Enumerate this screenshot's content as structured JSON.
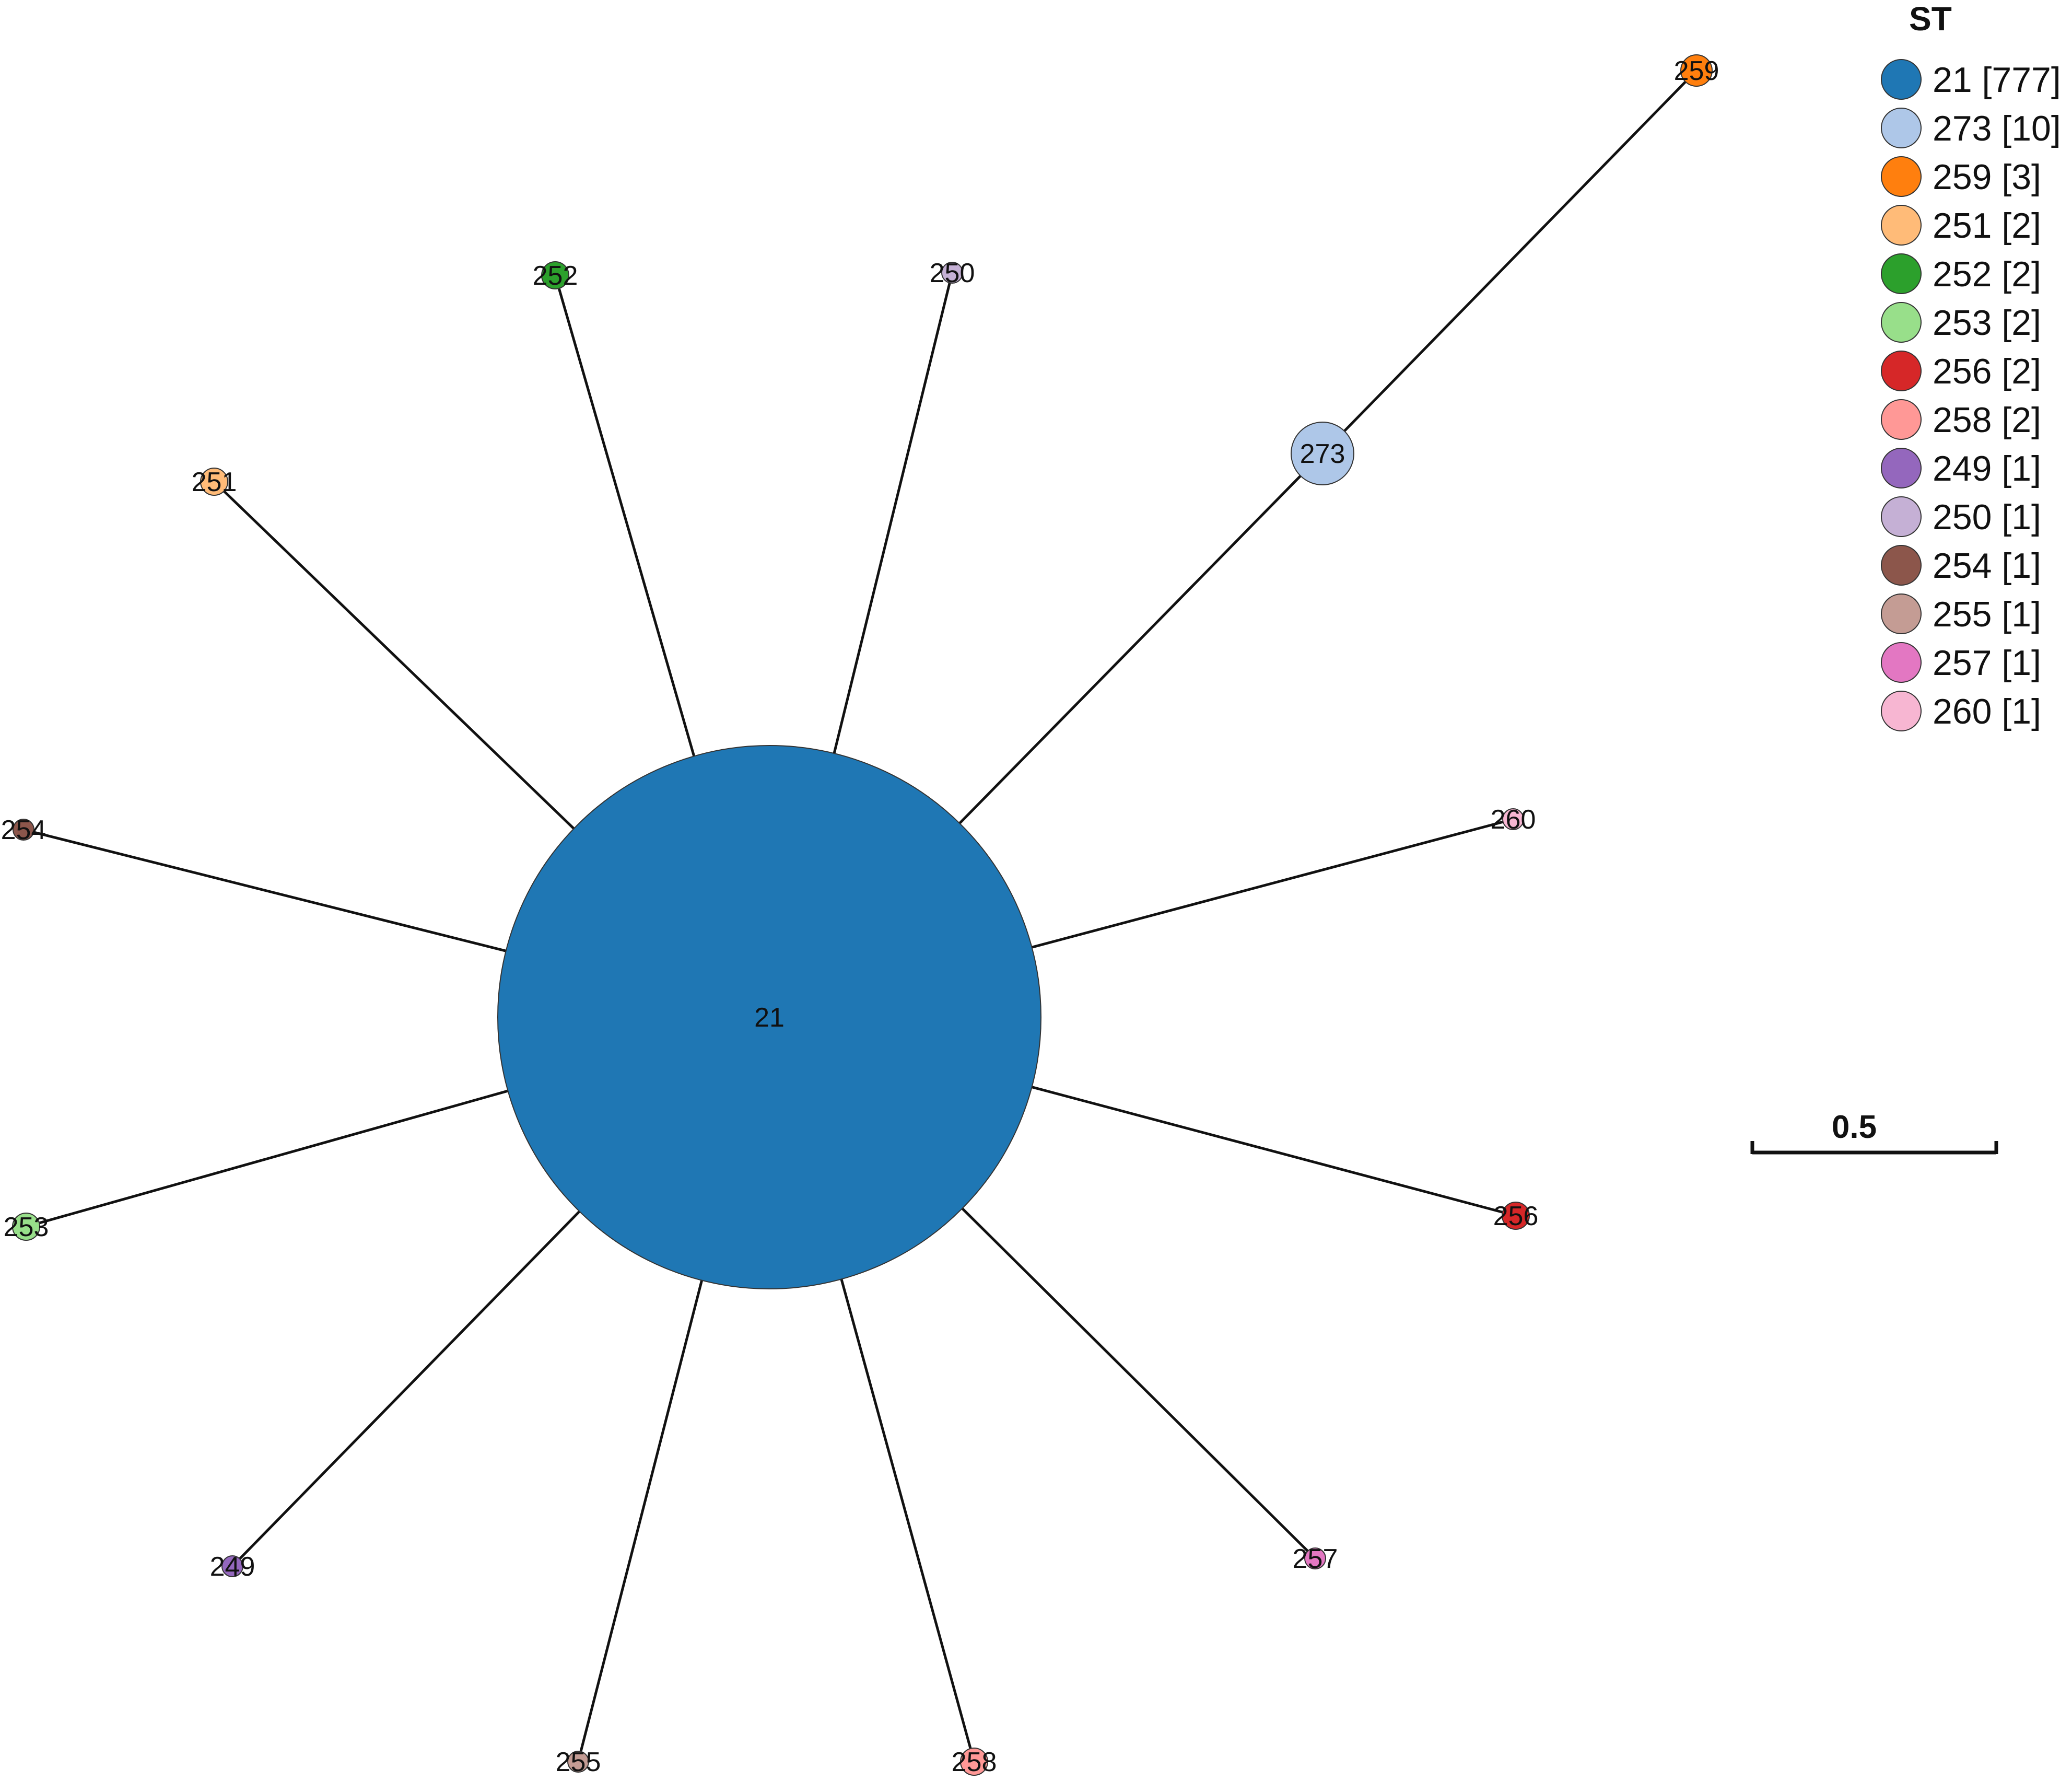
{
  "network": {
    "center": {
      "label": "21",
      "color": "#1f77b4"
    },
    "nodes": [
      {
        "id": "273",
        "label": "273",
        "color": "#aec7e8"
      },
      {
        "id": "259",
        "label": "259",
        "color": "#ff7f0e"
      },
      {
        "id": "252",
        "label": "252",
        "color": "#2ca02c"
      },
      {
        "id": "250",
        "label": "250",
        "color": "#c5b0d5"
      },
      {
        "id": "251",
        "label": "251",
        "color": "#ffbb78"
      },
      {
        "id": "254",
        "label": "254",
        "color": "#8c564b"
      },
      {
        "id": "253",
        "label": "253",
        "color": "#98df8a"
      },
      {
        "id": "249",
        "label": "249",
        "color": "#9467bd"
      },
      {
        "id": "255",
        "label": "255",
        "color": "#c49c94"
      },
      {
        "id": "258",
        "label": "258",
        "color": "#ff9896"
      },
      {
        "id": "257",
        "label": "257",
        "color": "#e377c2"
      },
      {
        "id": "256",
        "label": "256",
        "color": "#d62728"
      },
      {
        "id": "260",
        "label": "260",
        "color": "#f7b6d2"
      }
    ],
    "edges": [
      {
        "from": "21",
        "to": "273"
      },
      {
        "from": "273",
        "to": "259"
      },
      {
        "from": "21",
        "to": "252"
      },
      {
        "from": "21",
        "to": "250"
      },
      {
        "from": "21",
        "to": "251"
      },
      {
        "from": "21",
        "to": "254"
      },
      {
        "from": "21",
        "to": "253"
      },
      {
        "from": "21",
        "to": "249"
      },
      {
        "from": "21",
        "to": "255"
      },
      {
        "from": "21",
        "to": "258"
      },
      {
        "from": "21",
        "to": "257"
      },
      {
        "from": "21",
        "to": "256"
      },
      {
        "from": "21",
        "to": "260"
      }
    ]
  },
  "legend": {
    "title": "ST",
    "items": [
      {
        "label": "21 [777]",
        "color": "#1f77b4"
      },
      {
        "label": "273 [10]",
        "color": "#aec7e8"
      },
      {
        "label": "259 [3]",
        "color": "#ff7f0e"
      },
      {
        "label": "251 [2]",
        "color": "#ffbb78"
      },
      {
        "label": "252 [2]",
        "color": "#2ca02c"
      },
      {
        "label": "253 [2]",
        "color": "#98df8a"
      },
      {
        "label": "256 [2]",
        "color": "#d62728"
      },
      {
        "label": "258 [2]",
        "color": "#ff9896"
      },
      {
        "label": "249 [1]",
        "color": "#9467bd"
      },
      {
        "label": "250 [1]",
        "color": "#c5b0d5"
      },
      {
        "label": "254 [1]",
        "color": "#8c564b"
      },
      {
        "label": "255 [1]",
        "color": "#c49c94"
      },
      {
        "label": "257 [1]",
        "color": "#e377c2"
      },
      {
        "label": "260 [1]",
        "color": "#f7b6d2"
      }
    ]
  },
  "scale_bar": {
    "label": "0.5"
  }
}
